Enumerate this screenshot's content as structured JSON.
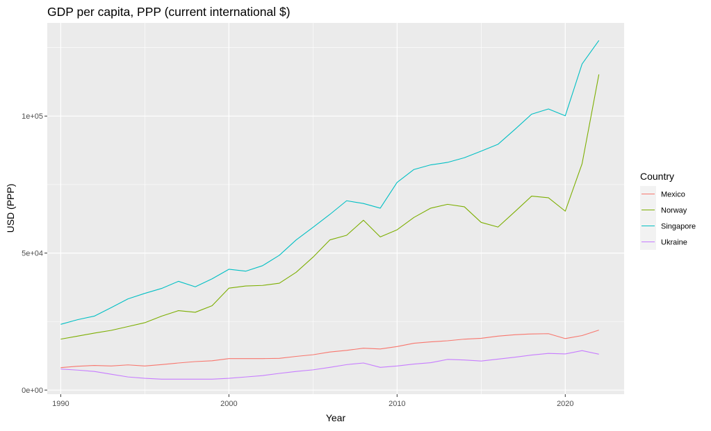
{
  "chart_data": {
    "type": "line",
    "title": "GDP per capita, PPP (current international $)",
    "xlabel": "Year",
    "ylabel": "USD (PPP)",
    "xlim": [
      1989.2,
      2023.5
    ],
    "ylim": [
      -1500,
      134000
    ],
    "x_ticks": [
      1990,
      2000,
      2010,
      2020
    ],
    "y_ticks": [
      {
        "value": 0,
        "label": "0e+00"
      },
      {
        "value": 50000,
        "label": "5e+04"
      },
      {
        "value": 100000,
        "label": "1e+05"
      }
    ],
    "grid": true,
    "legend": {
      "title": "Country",
      "position": "right"
    },
    "x": [
      1990,
      1991,
      1992,
      1993,
      1994,
      1995,
      1996,
      1997,
      1998,
      1999,
      2000,
      2001,
      2002,
      2003,
      2004,
      2005,
      2006,
      2007,
      2008,
      2009,
      2010,
      2011,
      2012,
      2013,
      2014,
      2015,
      2016,
      2017,
      2018,
      2019,
      2020,
      2021,
      2022
    ],
    "series": [
      {
        "name": "Mexico",
        "color": "#F8766D",
        "values": [
          8200,
          8700,
          9000,
          8800,
          9200,
          8800,
          9300,
          9900,
          10400,
          10700,
          11500,
          11500,
          11500,
          11600,
          12300,
          12900,
          13900,
          14500,
          15300,
          15000,
          15900,
          17100,
          17600,
          18000,
          18600,
          18900,
          19700,
          20200,
          20500,
          20600,
          18800,
          19900,
          21900
        ]
      },
      {
        "name": "Norway",
        "color": "#7CAE00",
        "values": [
          18600,
          19700,
          20800,
          21800,
          23200,
          24600,
          27000,
          29000,
          28400,
          30800,
          37200,
          38000,
          38200,
          39000,
          43000,
          48500,
          54800,
          56500,
          62000,
          55900,
          58500,
          63000,
          66400,
          67800,
          66900,
          61200,
          59500,
          65100,
          70800,
          70200,
          65300,
          82600,
          115200
        ]
      },
      {
        "name": "Singapore",
        "color": "#00BFC4",
        "values": [
          24000,
          25700,
          27000,
          30100,
          33300,
          35300,
          37100,
          39700,
          37700,
          40600,
          44100,
          43400,
          45400,
          49200,
          54800,
          59400,
          64100,
          69100,
          68100,
          66400,
          75800,
          80500,
          82200,
          83100,
          84800,
          87200,
          89700,
          95100,
          100700,
          102600,
          100100,
          119000,
          127600
        ]
      },
      {
        "name": "Ukraine",
        "color": "#C77CFF",
        "values": [
          7700,
          7300,
          6800,
          5800,
          4800,
          4300,
          4000,
          4000,
          4000,
          4000,
          4300,
          4800,
          5300,
          6100,
          6800,
          7400,
          8300,
          9300,
          9900,
          8300,
          8800,
          9500,
          10000,
          11200,
          11000,
          10600,
          11300,
          12000,
          12800,
          13400,
          13200,
          14400,
          13100
        ]
      }
    ]
  }
}
